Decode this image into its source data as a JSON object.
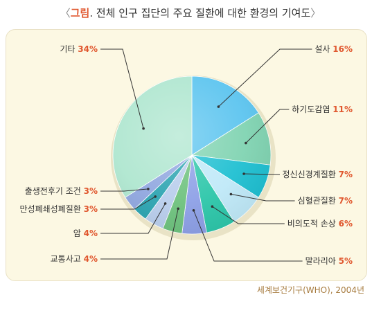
{
  "header": {
    "open_bracket": "〈",
    "keyword": "그림",
    "title": ". 전체 인구 집단의 주요 질환에 대한 환경의 기여도",
    "close_bracket": "〉"
  },
  "source": "세계보건기구(WHO), 2004년",
  "chart_data": {
    "type": "pie",
    "categories": [
      "설사",
      "하기도감염",
      "정신신경계질환",
      "심혈관질환",
      "비의도적 손상",
      "말라리아",
      "교통사고",
      "암",
      "만성폐쇄성폐질환",
      "출생전후기 조건",
      "기타"
    ],
    "values": [
      16,
      11,
      7,
      7,
      6,
      5,
      4,
      4,
      3,
      3,
      34
    ],
    "labels": [
      "16%",
      "11%",
      "7%",
      "7%",
      "6%",
      "5%",
      "4%",
      "4%",
      "3%",
      "3%",
      "34%"
    ],
    "colors": [
      "#5bc4ef",
      "#7fd3b1",
      "#1dbfd1",
      "#bfe9f8",
      "#2bc6a9",
      "#8c9fe6",
      "#6cc17c",
      "#b8cdec",
      "#2aa3b0",
      "#8fa6df",
      "#aee6cf"
    ],
    "start_angle_deg": 0,
    "direction": "clockwise"
  }
}
